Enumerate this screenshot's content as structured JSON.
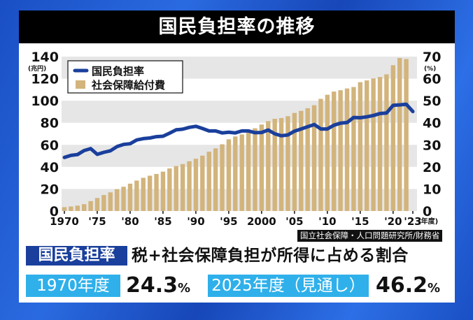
{
  "title": "国民負担率の推移",
  "chart_data": {
    "type": "bar+line",
    "title": "国民負担率の推移",
    "x": [
      1970,
      1971,
      1972,
      1973,
      1974,
      1975,
      1976,
      1977,
      1978,
      1979,
      1980,
      1981,
      1982,
      1983,
      1984,
      1985,
      1986,
      1987,
      1988,
      1989,
      1990,
      1991,
      1992,
      1993,
      1994,
      1995,
      1996,
      1997,
      1998,
      1999,
      2000,
      2001,
      2002,
      2003,
      2004,
      2005,
      2006,
      2007,
      2008,
      2009,
      2010,
      2011,
      2012,
      2013,
      2014,
      2015,
      2016,
      2017,
      2018,
      2019,
      2020,
      2021,
      2022,
      2023
    ],
    "x_tick_labels": [
      "1970",
      "'75",
      "'80",
      "'85",
      "'90",
      "'95",
      "2000",
      "'05",
      "'10",
      "'15",
      "'20",
      "'23"
    ],
    "x_tick_years": [
      1970,
      1975,
      1980,
      1985,
      1990,
      1995,
      2000,
      2005,
      2010,
      2015,
      2020,
      2023
    ],
    "x_unit": "(年度)",
    "left_axis": {
      "unit": "(兆円)",
      "ylim": [
        0,
        140
      ],
      "ticks": [
        0,
        20,
        40,
        60,
        80,
        100,
        120,
        140
      ]
    },
    "right_axis": {
      "unit": "(%)",
      "ylim": [
        0,
        70
      ],
      "ticks": [
        0,
        10,
        20,
        30,
        40,
        50,
        60,
        70
      ]
    },
    "grid": "alternating bands",
    "legend": "top-left",
    "series": [
      {
        "name": "国民負担率",
        "type": "line",
        "axis": "right",
        "color": "#1a3f9c",
        "values": [
          24.3,
          25.2,
          25.6,
          27.4,
          28.3,
          25.7,
          26.6,
          27.3,
          29.2,
          30.2,
          30.5,
          32.2,
          32.8,
          33.1,
          33.7,
          33.9,
          35.3,
          36.8,
          37.1,
          37.9,
          38.4,
          37.4,
          36.3,
          36.3,
          35.4,
          35.7,
          35.4,
          36.3,
          36.3,
          35.5,
          35.6,
          36.7,
          35.0,
          34.1,
          34.5,
          36.2,
          37.2,
          38.2,
          39.2,
          37.2,
          37.2,
          38.9,
          39.8,
          40.1,
          42.4,
          42.3,
          42.7,
          43.3,
          44.2,
          44.4,
          47.9,
          48.1,
          48.4,
          45.1
        ]
      },
      {
        "name": "社会保障給付費",
        "type": "bar",
        "axis": "left",
        "color": "#d2b47c",
        "values": [
          3.5,
          4.1,
          4.9,
          6.2,
          9.0,
          11.8,
          14.5,
          16.9,
          19.8,
          22.0,
          24.8,
          27.6,
          30.1,
          32.0,
          33.6,
          35.7,
          38.6,
          40.8,
          42.6,
          45.1,
          47.4,
          50.2,
          53.8,
          56.8,
          60.5,
          65.0,
          67.6,
          69.4,
          72.2,
          75.0,
          78.4,
          81.5,
          83.6,
          84.3,
          86.0,
          88.9,
          90.8,
          93.2,
          95.9,
          101.7,
          105.4,
          108.3,
          109.5,
          111.1,
          112.4,
          116.8,
          118.4,
          120.2,
          121.5,
          123.9,
          132.2,
          138.7,
          137.8,
          null
        ]
      }
    ]
  },
  "source": "国立社会保障・人口問題研究所/財務省",
  "definition": {
    "term": "国民負担率",
    "text": "税+社会保障負担が所得に占める割合"
  },
  "stats": [
    {
      "label": "1970年度",
      "value": "24.3",
      "unit": "%"
    },
    {
      "label": "2025年度（見通し）",
      "value": "46.2",
      "unit": "%"
    }
  ]
}
